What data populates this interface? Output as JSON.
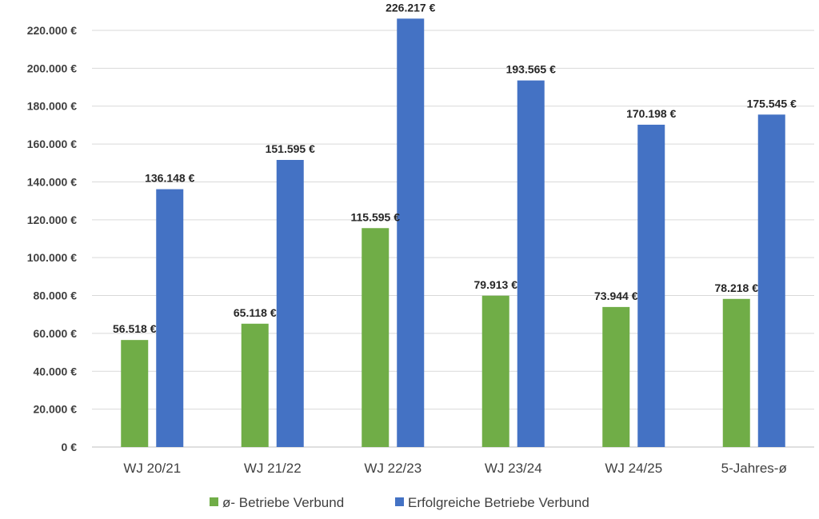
{
  "chart_data": {
    "type": "bar",
    "title": "",
    "xlabel": "",
    "ylabel": "",
    "categories": [
      "WJ 20/21",
      "WJ 21/22",
      "WJ 22/23",
      "WJ 23/24",
      "WJ 24/25",
      "5-Jahres-ø"
    ],
    "series": [
      {
        "name": "ø- Betriebe Verbund",
        "color": "#70ad47",
        "values": [
          56518,
          65118,
          115595,
          79913,
          73944,
          78218
        ],
        "labels": [
          "56.518 €",
          "65.118 €",
          "115.595 €",
          "79.913 €",
          "73.944 €",
          "78.218 €"
        ]
      },
      {
        "name": "Erfolgreiche Betriebe Verbund",
        "color": "#4472c4",
        "values": [
          136148,
          151595,
          226217,
          193565,
          170198,
          175545
        ],
        "labels": [
          "136.148 €",
          "151.595 €",
          "226.217 €",
          "193.565 €",
          "170.198 €",
          "175.545 €"
        ]
      }
    ],
    "ylim": [
      0,
      220000
    ],
    "y_ticks": [
      0,
      20000,
      40000,
      60000,
      80000,
      100000,
      120000,
      140000,
      160000,
      180000,
      200000,
      220000
    ],
    "y_tick_labels": [
      "0 €",
      "20.000 €",
      "40.000 €",
      "60.000 €",
      "80.000 €",
      "100.000 €",
      "120.000 €",
      "140.000 €",
      "160.000 €",
      "180.000 €",
      "200.000 €",
      "220.000 €"
    ],
    "grid": true,
    "legend_position": "bottom"
  }
}
